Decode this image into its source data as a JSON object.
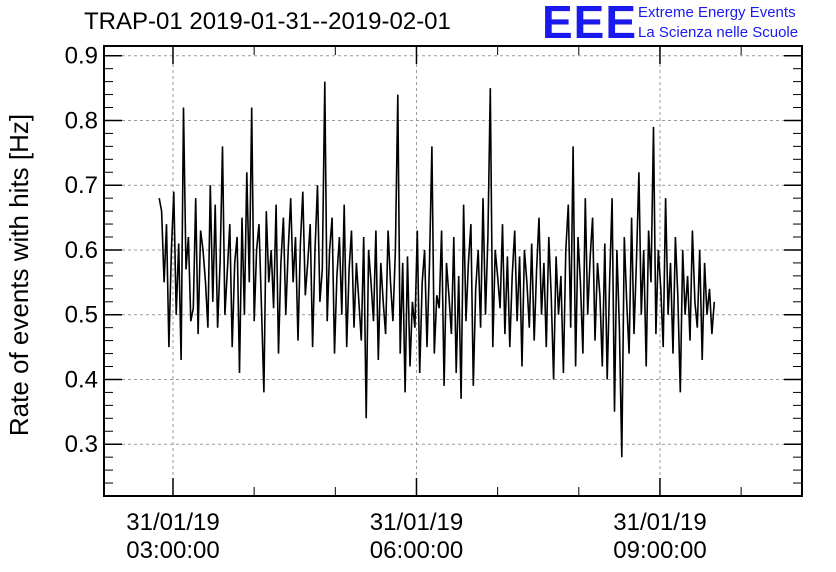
{
  "chart_data": {
    "type": "line",
    "title": "TRAP-01 2019-01-31--2019-02-01",
    "ylabel": "Rate of events with hits [Hz]",
    "xlabel": "",
    "x_unit": "hours",
    "x_range": [
      2.15,
      10.75
    ],
    "ylim": [
      0.22,
      0.915
    ],
    "y_ticks": [
      0.3,
      0.4,
      0.5,
      0.6,
      0.7,
      0.8,
      0.9
    ],
    "y_tick_labels": [
      "0.3",
      "0.4",
      "0.5",
      "0.6",
      "0.7",
      "0.8",
      "0.9"
    ],
    "x_ticks": [
      {
        "x": 3,
        "line1": "31/01/19",
        "line2": "03:00:00"
      },
      {
        "x": 6,
        "line1": "31/01/19",
        "line2": "06:00:00"
      },
      {
        "x": 9,
        "line1": "31/01/19",
        "line2": "09:00:00"
      }
    ],
    "grid": true,
    "series": [
      {
        "color": "#000000",
        "x_start": 2.83,
        "x_step": 0.03,
        "values": [
          0.68,
          0.66,
          0.55,
          0.64,
          0.45,
          0.6,
          0.69,
          0.5,
          0.61,
          0.43,
          0.82,
          0.57,
          0.62,
          0.49,
          0.51,
          0.68,
          0.47,
          0.63,
          0.6,
          0.55,
          0.48,
          0.7,
          0.52,
          0.67,
          0.48,
          0.58,
          0.76,
          0.5,
          0.57,
          0.64,
          0.45,
          0.58,
          0.62,
          0.41,
          0.65,
          0.5,
          0.72,
          0.55,
          0.82,
          0.49,
          0.6,
          0.64,
          0.51,
          0.38,
          0.66,
          0.55,
          0.6,
          0.51,
          0.67,
          0.44,
          0.58,
          0.65,
          0.5,
          0.6,
          0.68,
          0.55,
          0.62,
          0.46,
          0.61,
          0.69,
          0.53,
          0.58,
          0.64,
          0.45,
          0.6,
          0.7,
          0.52,
          0.57,
          0.86,
          0.49,
          0.6,
          0.65,
          0.44,
          0.56,
          0.62,
          0.5,
          0.67,
          0.45,
          0.57,
          0.63,
          0.48,
          0.58,
          0.52,
          0.46,
          0.62,
          0.34,
          0.6,
          0.55,
          0.49,
          0.63,
          0.43,
          0.58,
          0.52,
          0.47,
          0.63,
          0.55,
          0.49,
          0.6,
          0.84,
          0.44,
          0.58,
          0.38,
          0.59,
          0.42,
          0.52,
          0.48,
          0.63,
          0.41,
          0.55,
          0.6,
          0.45,
          0.58,
          0.76,
          0.44,
          0.53,
          0.51,
          0.63,
          0.39,
          0.58,
          0.53,
          0.47,
          0.62,
          0.41,
          0.56,
          0.37,
          0.67,
          0.49,
          0.58,
          0.64,
          0.39,
          0.54,
          0.6,
          0.48,
          0.68,
          0.5,
          0.62,
          0.85,
          0.45,
          0.6,
          0.56,
          0.51,
          0.64,
          0.47,
          0.59,
          0.45,
          0.56,
          0.63,
          0.49,
          0.59,
          0.42,
          0.6,
          0.55,
          0.48,
          0.61,
          0.46,
          0.57,
          0.65,
          0.5,
          0.58,
          0.45,
          0.62,
          0.53,
          0.4,
          0.59,
          0.5,
          0.56,
          0.41,
          0.6,
          0.67,
          0.48,
          0.76,
          0.42,
          0.62,
          0.55,
          0.44,
          0.68,
          0.5,
          0.59,
          0.65,
          0.46,
          0.58,
          0.53,
          0.42,
          0.61,
          0.4,
          0.55,
          0.68,
          0.35,
          0.6,
          0.48,
          0.28,
          0.62,
          0.52,
          0.44,
          0.65,
          0.47,
          0.58,
          0.72,
          0.5,
          0.6,
          0.42,
          0.63,
          0.55,
          0.79,
          0.47,
          0.6,
          0.54,
          0.45,
          0.68,
          0.5,
          0.58,
          0.44,
          0.62,
          0.53,
          0.38,
          0.6,
          0.5,
          0.56,
          0.46,
          0.63,
          0.52,
          0.48,
          0.6,
          0.43,
          0.58,
          0.5,
          0.54,
          0.47,
          0.52
        ]
      }
    ]
  },
  "header": {
    "title": "TRAP-01 2019-01-31--2019-02-01",
    "logo_mark": "EEE",
    "logo_line1": "Extreme Energy Events",
    "logo_line2": "La Scienza nelle Scuole"
  },
  "colors": {
    "logo_blue": "#1a1aee",
    "grid": "#9a9a9a",
    "line": "#000000"
  }
}
